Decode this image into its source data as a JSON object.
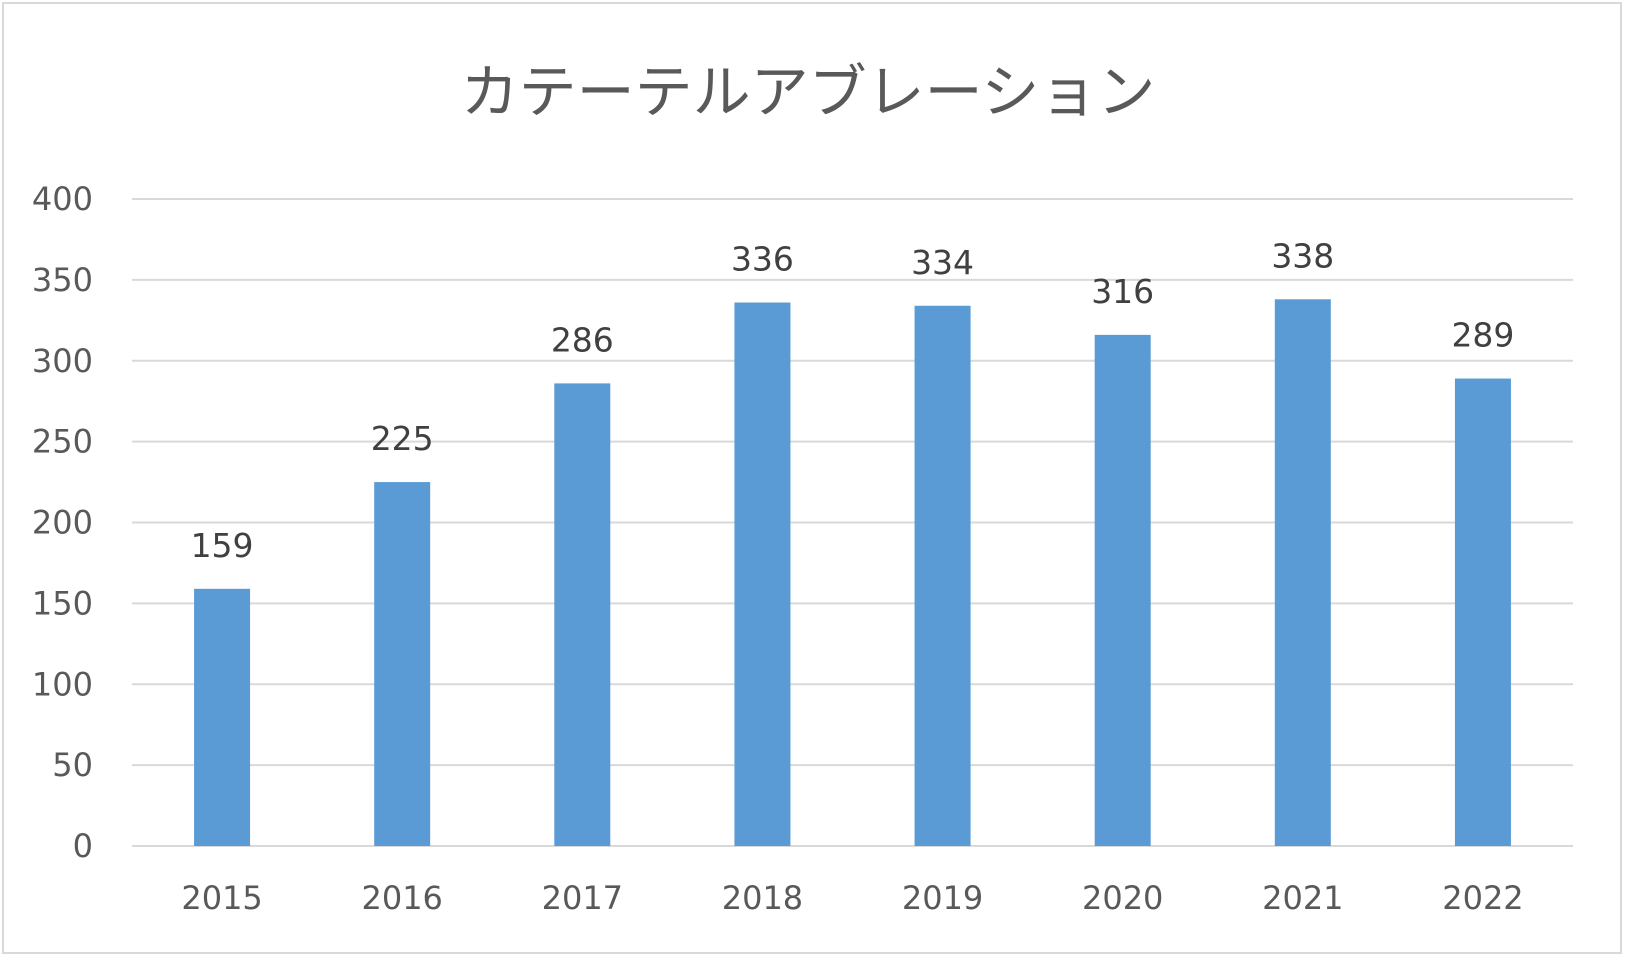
{
  "chart_data": {
    "type": "bar",
    "title": "カテーテルアブレーション",
    "categories": [
      "2015",
      "2016",
      "2017",
      "2018",
      "2019",
      "2020",
      "2021",
      "2022"
    ],
    "values": [
      159,
      225,
      286,
      336,
      334,
      316,
      338,
      289
    ],
    "data_labels": [
      "159",
      "225",
      "286",
      "336",
      "334",
      "316",
      "338",
      "289"
    ],
    "ylim": [
      0,
      400
    ],
    "y_ticks": [
      "0",
      "50",
      "100",
      "150",
      "200",
      "250",
      "300",
      "350",
      "400"
    ],
    "xlabel": "",
    "ylabel": "",
    "grid": true,
    "legend": "none",
    "bar_color": "#5b9bd5",
    "grid_color": "#d9d9d9"
  }
}
